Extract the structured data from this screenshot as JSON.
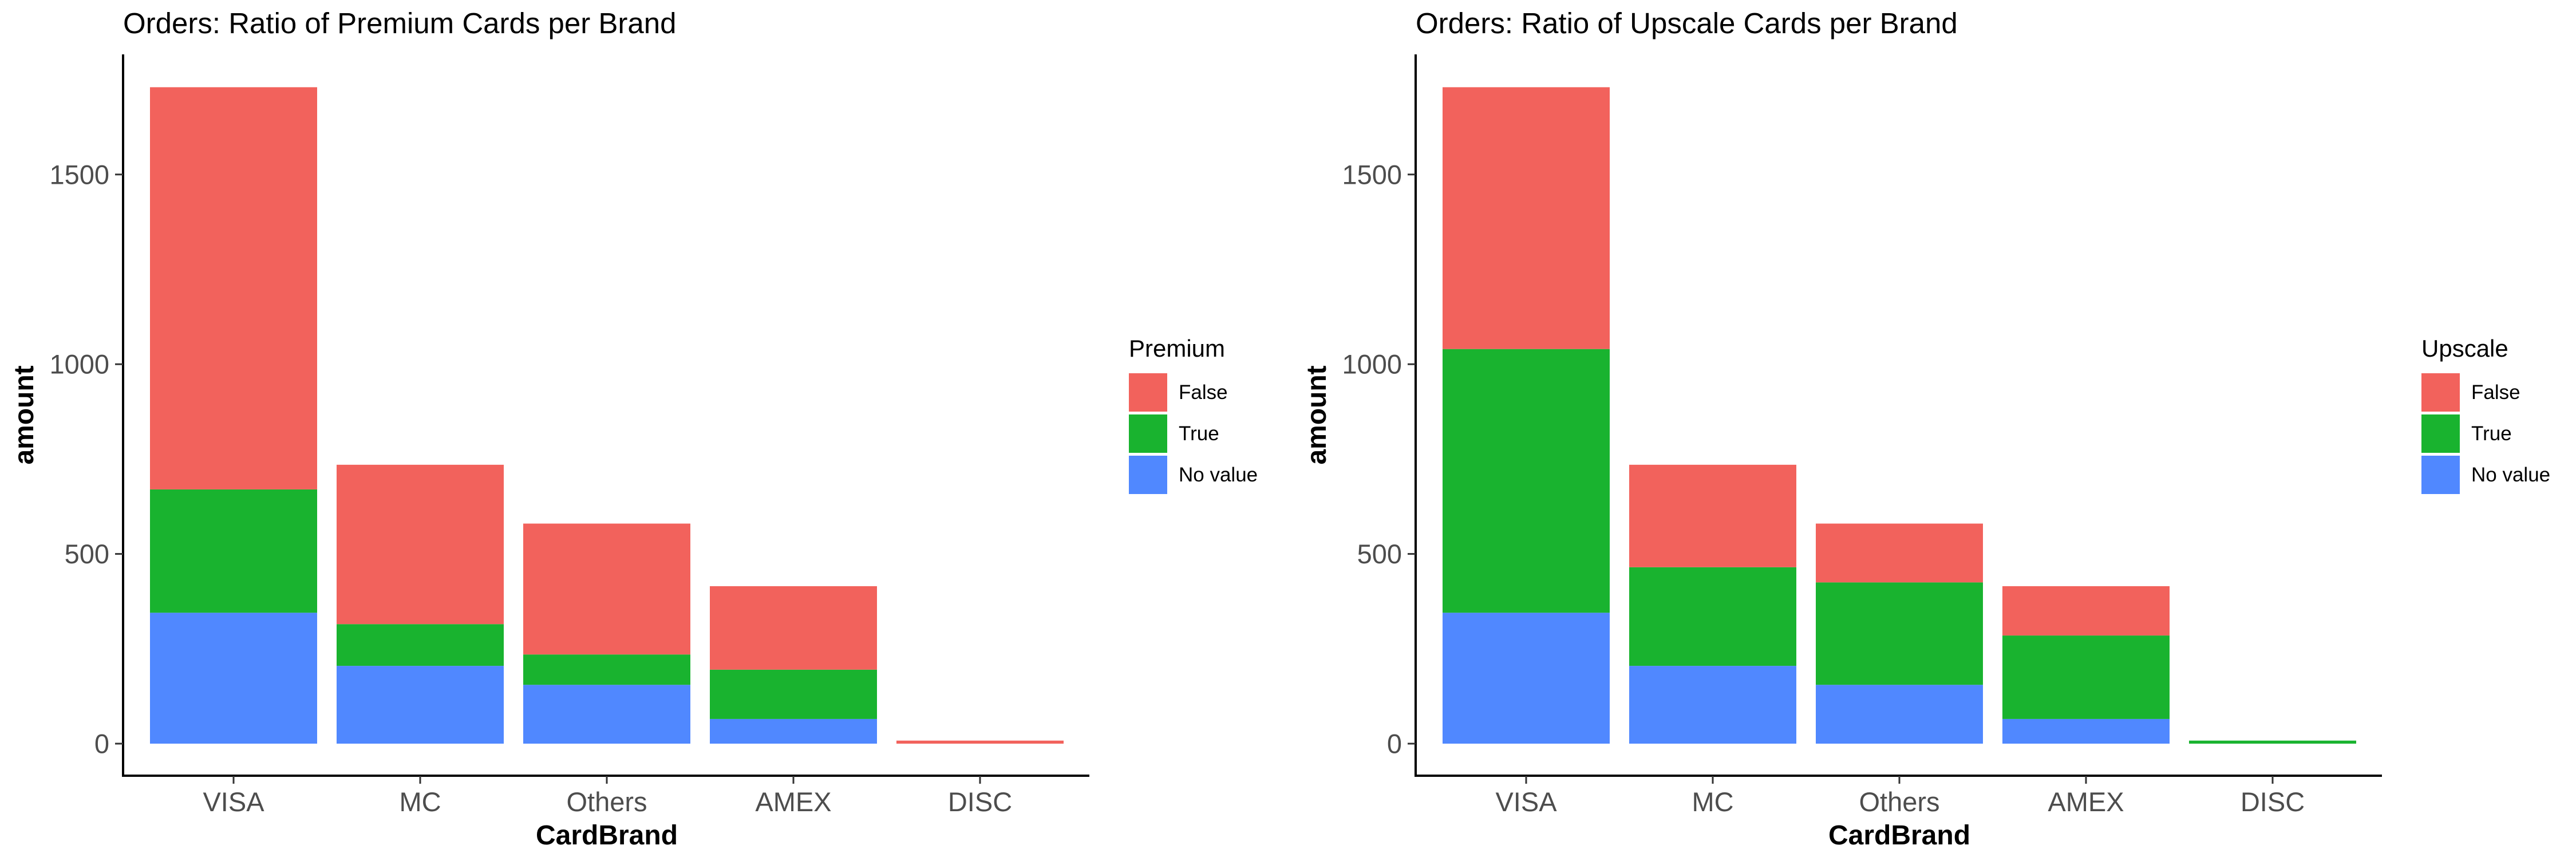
{
  "chart_data": [
    {
      "type": "bar",
      "stacked": true,
      "title": "Orders: Ratio of Premium Cards per Brand",
      "xlabel": "CardBrand",
      "ylabel": "amount",
      "ylim": [
        0,
        1745
      ],
      "yticks": [
        0,
        500,
        1000,
        1500
      ],
      "categories": [
        "VISA",
        "MC",
        "Others",
        "AMEX",
        "DISC"
      ],
      "legend_title": "Premium",
      "legend_position": "right",
      "grid": false,
      "series": [
        {
          "name": "No value",
          "color": "#5088ff",
          "values": [
            345,
            205,
            155,
            65,
            0
          ]
        },
        {
          "name": "True",
          "color": "#19b32f",
          "values": [
            325,
            110,
            80,
            130,
            0
          ]
        },
        {
          "name": "False",
          "color": "#f2625c",
          "values": [
            1060,
            420,
            345,
            220,
            8
          ]
        }
      ]
    },
    {
      "type": "bar",
      "stacked": true,
      "title": "Orders: Ratio of Upscale Cards per Brand",
      "xlabel": "CardBrand",
      "ylabel": "amount",
      "ylim": [
        0,
        1745
      ],
      "yticks": [
        0,
        500,
        1000,
        1500
      ],
      "categories": [
        "VISA",
        "MC",
        "Others",
        "AMEX",
        "DISC"
      ],
      "legend_title": "Upscale",
      "legend_position": "right",
      "grid": false,
      "series": [
        {
          "name": "No value",
          "color": "#5088ff",
          "values": [
            345,
            205,
            155,
            65,
            0
          ]
        },
        {
          "name": "True",
          "color": "#19b32f",
          "values": [
            695,
            260,
            270,
            220,
            8
          ]
        },
        {
          "name": "False",
          "color": "#f2625c",
          "values": [
            690,
            270,
            155,
            130,
            0
          ]
        }
      ]
    }
  ]
}
